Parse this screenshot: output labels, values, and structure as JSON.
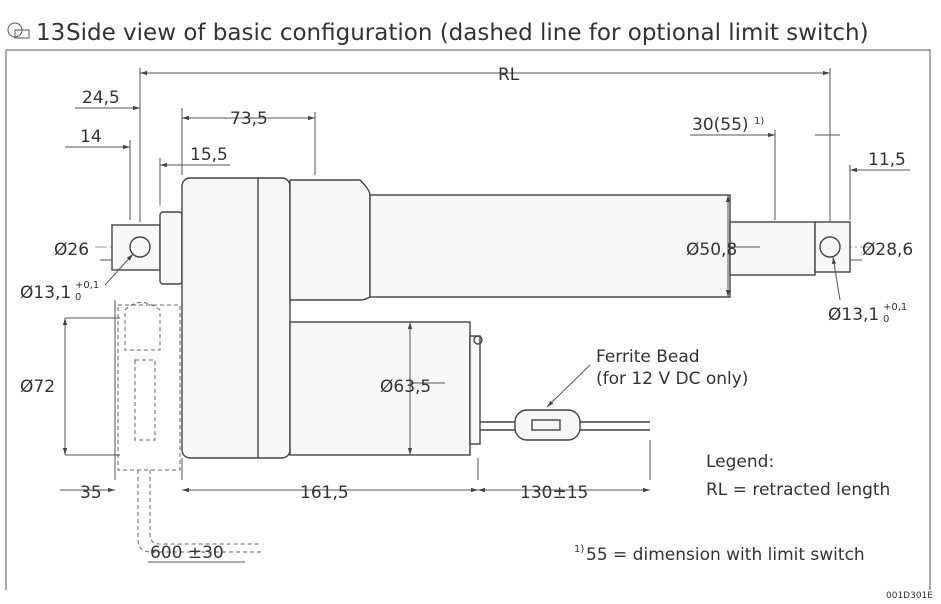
{
  "figure": {
    "number": "13",
    "title": "Side view of basic configuration (dashed line for optional limit switch)"
  },
  "dimensions": {
    "rl": "RL",
    "d24": "24,5",
    "d73": "73,5",
    "d14": "14",
    "d15": "15,5",
    "d30": {
      "label": "30(55)",
      "note": "1)"
    },
    "d11": "11,5",
    "dia26": "Ø26",
    "dia50": "Ø50,8",
    "dia28": "Ø28,6",
    "hole_rear": {
      "label": "Ø13,1",
      "upper": "+0,1",
      "lower": "0"
    },
    "hole_front": {
      "label": "Ø13,1",
      "upper": "+0,1",
      "lower": "0"
    },
    "dia72": "Ø72",
    "dia63": "Ø63,5",
    "d35": "35",
    "d161": "161,5",
    "d130": "130±15",
    "cable": "600 ±30"
  },
  "callout": {
    "line1": "Ferrite Bead",
    "line2": "(for 12 V DC only)"
  },
  "legend": {
    "title": "Legend:",
    "entry": "RL = retracted length"
  },
  "footnote": {
    "marker": "1)",
    "text": "55 = dimension with limit switch"
  },
  "drawing_id": "001D301E"
}
